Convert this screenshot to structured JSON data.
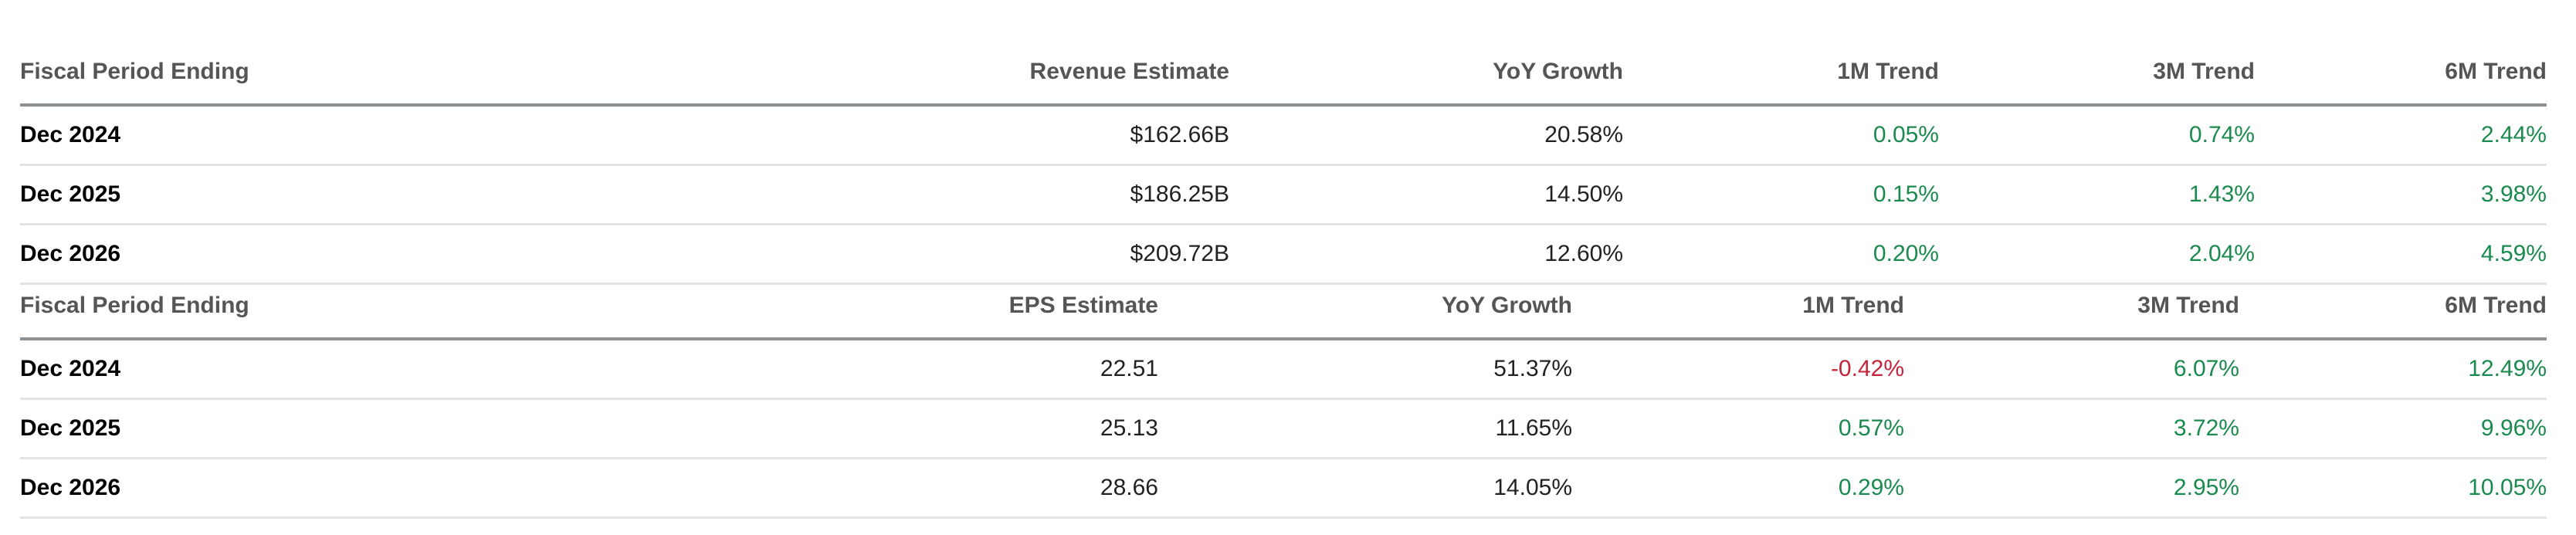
{
  "revenue_table": {
    "headers": [
      "Fiscal Period Ending",
      "Revenue Estimate",
      "YoY Growth",
      "1M Trend",
      "3M Trend",
      "6M Trend"
    ],
    "rows": [
      {
        "period": "Dec 2024",
        "estimate": "$162.66B",
        "yoy": "20.58%",
        "m1": "0.05%",
        "m3": "0.74%",
        "m6": "2.44%"
      },
      {
        "period": "Dec 2025",
        "estimate": "$186.25B",
        "yoy": "14.50%",
        "m1": "0.15%",
        "m3": "1.43%",
        "m6": "3.98%"
      },
      {
        "period": "Dec 2026",
        "estimate": "$209.72B",
        "yoy": "12.60%",
        "m1": "0.20%",
        "m3": "2.04%",
        "m6": "4.59%"
      }
    ]
  },
  "eps_table": {
    "headers": [
      "Fiscal Period Ending",
      "EPS Estimate",
      "YoY Growth",
      "1M Trend",
      "3M Trend",
      "6M Trend"
    ],
    "rows": [
      {
        "period": "Dec 2024",
        "estimate": "22.51",
        "yoy": "51.37%",
        "m1": "-0.42%",
        "m3": "6.07%",
        "m6": "12.49%"
      },
      {
        "period": "Dec 2025",
        "estimate": "25.13",
        "yoy": "11.65%",
        "m1": "0.57%",
        "m3": "3.72%",
        "m6": "9.96%"
      },
      {
        "period": "Dec 2026",
        "estimate": "28.66",
        "yoy": "14.05%",
        "m1": "0.29%",
        "m3": "2.95%",
        "m6": "10.05%"
      }
    ]
  },
  "colors": {
    "positive": "#1b8a4e",
    "negative": "#c4243a",
    "header_text": "#555555"
  }
}
